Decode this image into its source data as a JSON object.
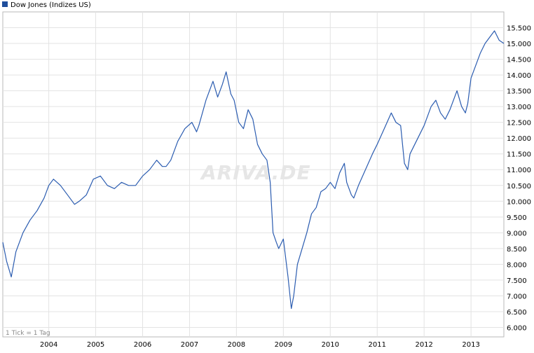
{
  "legend": {
    "label": "Dow Jones (Indizes US)",
    "color": "#1f4e9c"
  },
  "footnote": "1 Tick = 1 Tag",
  "watermark": "ARIVA.DE",
  "line_color": "#2b5cb0",
  "chart_data": {
    "type": "line",
    "title": "",
    "xlabel": "",
    "ylabel": "",
    "grid": true,
    "legend_position": "top-left",
    "ylim": [
      5700,
      16000
    ],
    "xlim": [
      2003.02,
      2013.7
    ],
    "y_ticks": [
      6000,
      6500,
      7000,
      7500,
      8000,
      8500,
      9000,
      9500,
      10000,
      10500,
      11000,
      11500,
      12000,
      12500,
      13000,
      13500,
      14000,
      14500,
      15000,
      15500
    ],
    "y_tick_labels": [
      "6.000",
      "6.500",
      "7.000",
      "7.500",
      "8.000",
      "8.500",
      "9.000",
      "9.500",
      "10.000",
      "10.500",
      "11.000",
      "11.500",
      "12.000",
      "12.500",
      "13.000",
      "13.500",
      "14.000",
      "14.500",
      "15.000",
      "15.500"
    ],
    "x_ticks": [
      2004,
      2005,
      2006,
      2007,
      2008,
      2009,
      2010,
      2011,
      2012,
      2013
    ],
    "x_tick_labels": [
      "2004",
      "2005",
      "2006",
      "2007",
      "2008",
      "2009",
      "2010",
      "2011",
      "2012",
      "2013"
    ],
    "series": [
      {
        "x": [
          2003.02,
          2003.1,
          2003.2,
          2003.3,
          2003.45,
          2003.6,
          2003.75,
          2003.9,
          2004.0,
          2004.1,
          2004.25,
          2004.4,
          2004.55,
          2004.65,
          2004.8,
          2004.95,
          2005.1,
          2005.25,
          2005.4,
          2005.55,
          2005.7,
          2005.85,
          2006.0,
          2006.15,
          2006.3,
          2006.42,
          2006.5,
          2006.6,
          2006.75,
          2006.9,
          2007.05,
          2007.15,
          2007.2,
          2007.35,
          2007.5,
          2007.6,
          2007.7,
          2007.78,
          2007.88,
          2007.95,
          2008.05,
          2008.15,
          2008.25,
          2008.35,
          2008.45,
          2008.55,
          2008.65,
          2008.72,
          2008.78,
          2008.85,
          2008.9,
          2009.0,
          2009.1,
          2009.17,
          2009.22,
          2009.3,
          2009.4,
          2009.5,
          2009.6,
          2009.7,
          2009.8,
          2009.9,
          2010.0,
          2010.1,
          2010.2,
          2010.3,
          2010.35,
          2010.45,
          2010.5,
          2010.6,
          2010.75,
          2010.9,
          2011.0,
          2011.15,
          2011.3,
          2011.4,
          2011.5,
          2011.58,
          2011.65,
          2011.7,
          2011.8,
          2011.9,
          2012.0,
          2012.15,
          2012.25,
          2012.35,
          2012.45,
          2012.55,
          2012.7,
          2012.8,
          2012.88,
          2012.93,
          2013.0,
          2013.1,
          2013.2,
          2013.3,
          2013.4,
          2013.5,
          2013.6,
          2013.7
        ],
        "y": [
          8700,
          8100,
          7600,
          8400,
          9000,
          9400,
          9700,
          10100,
          10500,
          10700,
          10500,
          10200,
          9900,
          10000,
          10200,
          10700,
          10800,
          10500,
          10400,
          10600,
          10500,
          10500,
          10800,
          11000,
          11300,
          11100,
          11100,
          11300,
          11900,
          12300,
          12500,
          12200,
          12400,
          13200,
          13800,
          13300,
          13700,
          14100,
          13400,
          13200,
          12500,
          12300,
          12900,
          12600,
          11800,
          11500,
          11300,
          10600,
          9000,
          8700,
          8500,
          8800,
          7600,
          6600,
          7000,
          8000,
          8500,
          9000,
          9600,
          9800,
          10300,
          10400,
          10600,
          10400,
          10900,
          11200,
          10600,
          10200,
          10100,
          10500,
          11000,
          11500,
          11800,
          12300,
          12800,
          12500,
          12400,
          11200,
          11000,
          11500,
          11800,
          12100,
          12400,
          13000,
          13200,
          12800,
          12600,
          12900,
          13500,
          13000,
          12800,
          13100,
          13900,
          14300,
          14700,
          15000,
          15200,
          15400,
          15100,
          15000
        ]
      }
    ]
  }
}
